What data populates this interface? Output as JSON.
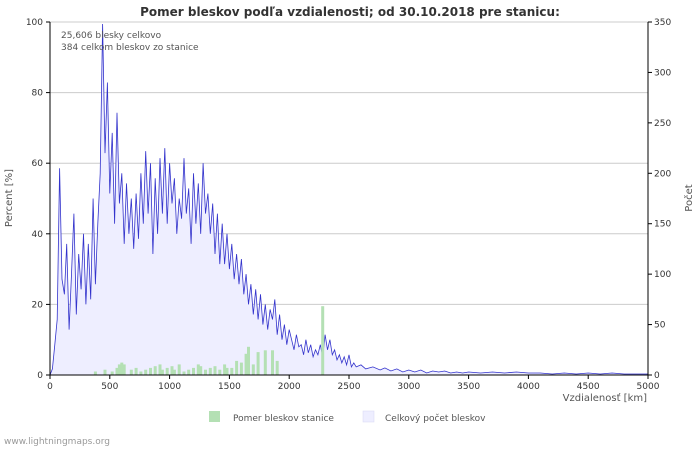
{
  "chart_data": {
    "type": "bar+area",
    "title": "Pomer bleskov podľa vzdialenosti; od 30.10.2018 pre stanicu:",
    "annotations": [
      "25,606 blesky celkovo",
      "384 celkom bleskov zo stanice"
    ],
    "xlabel": "Vzdialenosť   [km]",
    "ylabel_left": "Percent   [%]",
    "ylabel_right": "Počet",
    "xlim": [
      0,
      5000
    ],
    "ylim_left": [
      0,
      100
    ],
    "ylim_right": [
      0,
      350
    ],
    "x_ticks": [
      "0",
      "500",
      "1000",
      "1500",
      "2000",
      "2500",
      "3000",
      "3500",
      "4000",
      "4500",
      "5000"
    ],
    "y_left_ticks": [
      "0",
      "20",
      "40",
      "60",
      "80",
      "100"
    ],
    "y_right_ticks": [
      "0",
      "50",
      "100",
      "150",
      "200",
      "250",
      "300",
      "350"
    ],
    "legend_position": "bottom",
    "series": [
      {
        "name": "Pomer bleskov stanice",
        "axis": "left",
        "kind": "bar",
        "color": "#b4e0b4",
        "points": [
          [
            380,
            1.0
          ],
          [
            460,
            1.5
          ],
          [
            520,
            1.0
          ],
          [
            560,
            2.0
          ],
          [
            580,
            3.0
          ],
          [
            600,
            3.5
          ],
          [
            620,
            3.0
          ],
          [
            680,
            1.5
          ],
          [
            720,
            2.0
          ],
          [
            760,
            1.0
          ],
          [
            800,
            1.5
          ],
          [
            840,
            2.0
          ],
          [
            880,
            2.5
          ],
          [
            920,
            3.0
          ],
          [
            940,
            1.5
          ],
          [
            980,
            2.0
          ],
          [
            1020,
            2.5
          ],
          [
            1040,
            1.5
          ],
          [
            1080,
            3.0
          ],
          [
            1120,
            1.0
          ],
          [
            1160,
            1.5
          ],
          [
            1200,
            2.0
          ],
          [
            1240,
            3.0
          ],
          [
            1260,
            2.5
          ],
          [
            1300,
            1.5
          ],
          [
            1340,
            2.0
          ],
          [
            1380,
            2.5
          ],
          [
            1420,
            1.5
          ],
          [
            1460,
            3.0
          ],
          [
            1480,
            2.0
          ],
          [
            1520,
            2.0
          ],
          [
            1560,
            4.0
          ],
          [
            1600,
            3.5
          ],
          [
            1640,
            6.0
          ],
          [
            1660,
            8.0
          ],
          [
            1700,
            3.0
          ],
          [
            1740,
            6.5
          ],
          [
            1800,
            7.0
          ],
          [
            1860,
            7.0
          ],
          [
            1900,
            4.0
          ],
          [
            2280,
            19.5
          ]
        ]
      },
      {
        "name": "Celkový počet bleskov",
        "axis": "right",
        "kind": "area",
        "color": "#3333cc",
        "fill": "#eeeeff",
        "points": [
          [
            0,
            0
          ],
          [
            20,
            6
          ],
          [
            40,
            30
          ],
          [
            60,
            55
          ],
          [
            80,
            205
          ],
          [
            100,
            95
          ],
          [
            120,
            80
          ],
          [
            140,
            130
          ],
          [
            160,
            45
          ],
          [
            180,
            100
          ],
          [
            200,
            160
          ],
          [
            220,
            60
          ],
          [
            240,
            120
          ],
          [
            260,
            85
          ],
          [
            280,
            140
          ],
          [
            300,
            70
          ],
          [
            320,
            130
          ],
          [
            340,
            75
          ],
          [
            360,
            175
          ],
          [
            380,
            90
          ],
          [
            400,
            150
          ],
          [
            420,
            200
          ],
          [
            440,
            348
          ],
          [
            460,
            220
          ],
          [
            480,
            290
          ],
          [
            500,
            180
          ],
          [
            520,
            240
          ],
          [
            540,
            150
          ],
          [
            560,
            260
          ],
          [
            580,
            170
          ],
          [
            600,
            200
          ],
          [
            620,
            130
          ],
          [
            640,
            190
          ],
          [
            660,
            140
          ],
          [
            680,
            175
          ],
          [
            700,
            125
          ],
          [
            720,
            180
          ],
          [
            740,
            135
          ],
          [
            760,
            200
          ],
          [
            780,
            150
          ],
          [
            800,
            222
          ],
          [
            820,
            160
          ],
          [
            840,
            210
          ],
          [
            860,
            120
          ],
          [
            880,
            195
          ],
          [
            900,
            140
          ],
          [
            920,
            215
          ],
          [
            940,
            160
          ],
          [
            960,
            225
          ],
          [
            980,
            150
          ],
          [
            1000,
            210
          ],
          [
            1020,
            170
          ],
          [
            1040,
            195
          ],
          [
            1060,
            140
          ],
          [
            1080,
            175
          ],
          [
            1100,
            155
          ],
          [
            1120,
            215
          ],
          [
            1140,
            160
          ],
          [
            1160,
            185
          ],
          [
            1180,
            130
          ],
          [
            1200,
            200
          ],
          [
            1220,
            150
          ],
          [
            1240,
            190
          ],
          [
            1260,
            140
          ],
          [
            1280,
            210
          ],
          [
            1300,
            160
          ],
          [
            1320,
            180
          ],
          [
            1340,
            140
          ],
          [
            1360,
            170
          ],
          [
            1380,
            120
          ],
          [
            1400,
            160
          ],
          [
            1420,
            110
          ],
          [
            1440,
            150
          ],
          [
            1460,
            110
          ],
          [
            1480,
            140
          ],
          [
            1500,
            105
          ],
          [
            1520,
            130
          ],
          [
            1540,
            95
          ],
          [
            1560,
            120
          ],
          [
            1580,
            90
          ],
          [
            1600,
            115
          ],
          [
            1620,
            80
          ],
          [
            1640,
            100
          ],
          [
            1660,
            70
          ],
          [
            1680,
            90
          ],
          [
            1700,
            60
          ],
          [
            1720,
            85
          ],
          [
            1740,
            55
          ],
          [
            1760,
            80
          ],
          [
            1780,
            50
          ],
          [
            1800,
            70
          ],
          [
            1820,
            45
          ],
          [
            1840,
            65
          ],
          [
            1860,
            55
          ],
          [
            1880,
            75
          ],
          [
            1900,
            40
          ],
          [
            1920,
            60
          ],
          [
            1940,
            35
          ],
          [
            1960,
            50
          ],
          [
            1980,
            30
          ],
          [
            2000,
            45
          ],
          [
            2020,
            35
          ],
          [
            2040,
            25
          ],
          [
            2060,
            40
          ],
          [
            2080,
            28
          ],
          [
            2100,
            30
          ],
          [
            2120,
            20
          ],
          [
            2140,
            35
          ],
          [
            2160,
            22
          ],
          [
            2180,
            30
          ],
          [
            2200,
            18
          ],
          [
            2220,
            25
          ],
          [
            2240,
            20
          ],
          [
            2260,
            30
          ],
          [
            2280,
            18
          ],
          [
            2300,
            40
          ],
          [
            2320,
            25
          ],
          [
            2340,
            35
          ],
          [
            2360,
            20
          ],
          [
            2380,
            25
          ],
          [
            2400,
            15
          ],
          [
            2420,
            20
          ],
          [
            2440,
            12
          ],
          [
            2460,
            18
          ],
          [
            2480,
            10
          ],
          [
            2500,
            20
          ],
          [
            2520,
            8
          ],
          [
            2540,
            12
          ],
          [
            2560,
            8
          ],
          [
            2600,
            10
          ],
          [
            2640,
            6
          ],
          [
            2700,
            8
          ],
          [
            2760,
            5
          ],
          [
            2800,
            7
          ],
          [
            2850,
            4
          ],
          [
            2900,
            6
          ],
          [
            2950,
            3
          ],
          [
            3000,
            5
          ],
          [
            3050,
            3
          ],
          [
            3100,
            5
          ],
          [
            3150,
            2
          ],
          [
            3200,
            4
          ],
          [
            3250,
            3
          ],
          [
            3300,
            4
          ],
          [
            3350,
            2
          ],
          [
            3400,
            3
          ],
          [
            3450,
            2
          ],
          [
            3500,
            3
          ],
          [
            3600,
            2
          ],
          [
            3700,
            3
          ],
          [
            3800,
            2
          ],
          [
            3900,
            3
          ],
          [
            4000,
            2
          ],
          [
            4100,
            2
          ],
          [
            4200,
            1
          ],
          [
            4300,
            2
          ],
          [
            4400,
            1
          ],
          [
            4500,
            2
          ],
          [
            4600,
            1
          ],
          [
            4700,
            2
          ],
          [
            4800,
            1
          ],
          [
            4900,
            1
          ],
          [
            5000,
            1
          ]
        ]
      }
    ]
  },
  "footer": "www.lightningmaps.org"
}
